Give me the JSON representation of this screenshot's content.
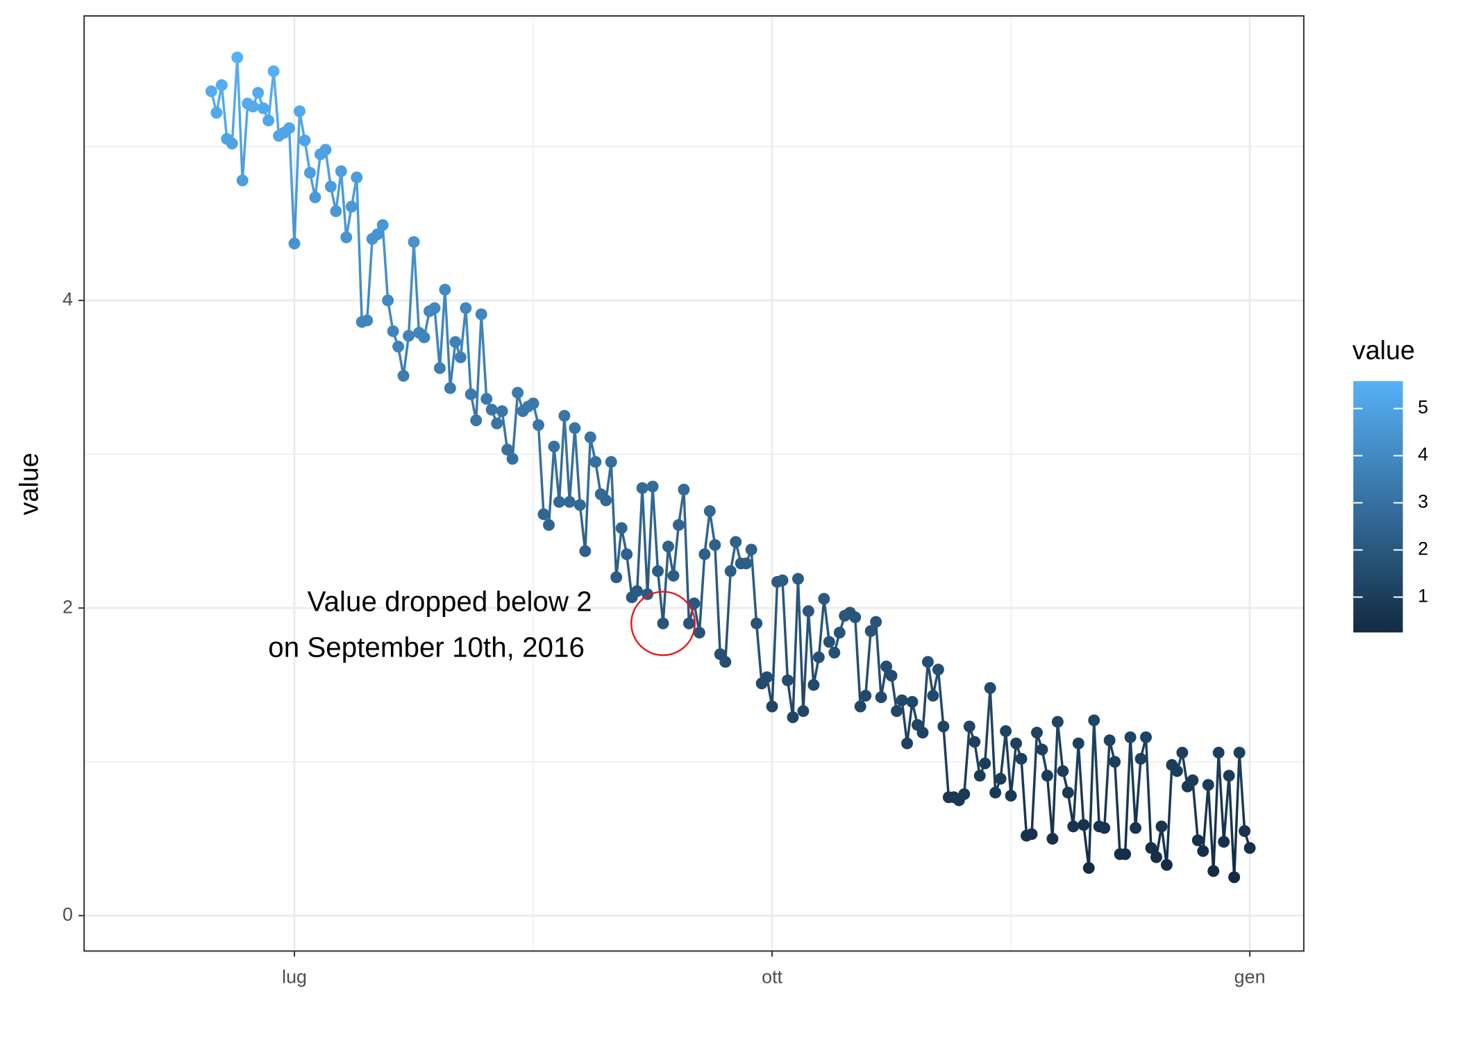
{
  "chart_data": {
    "type": "line",
    "y_label": "value",
    "x": [
      167,
      168,
      169,
      170,
      171,
      172,
      173,
      174,
      175,
      176,
      177,
      178,
      179,
      180,
      181,
      182,
      183,
      184,
      185,
      186,
      187,
      188,
      189,
      190,
      191,
      192,
      193,
      194,
      195,
      196,
      197,
      198,
      199,
      200,
      201,
      202,
      203,
      204,
      205,
      206,
      207,
      208,
      209,
      210,
      211,
      212,
      213,
      214,
      215,
      216,
      217,
      218,
      219,
      220,
      221,
      222,
      223,
      224,
      225,
      226,
      227,
      228,
      229,
      230,
      231,
      232,
      233,
      234,
      235,
      236,
      237,
      238,
      239,
      240,
      241,
      242,
      243,
      244,
      245,
      246,
      247,
      248,
      249,
      250,
      251,
      252,
      253,
      254,
      255,
      256,
      257,
      258,
      259,
      260,
      261,
      262,
      263,
      264,
      265,
      266,
      267,
      268,
      269,
      270,
      271,
      272,
      273,
      274,
      275,
      276,
      277,
      278,
      279,
      280,
      281,
      282,
      283,
      284,
      285,
      286,
      287,
      288,
      289,
      290,
      291,
      292,
      293,
      294,
      295,
      296,
      297,
      298,
      299,
      300,
      301,
      302,
      303,
      304,
      305,
      306,
      307,
      308,
      309,
      310,
      311,
      312,
      313,
      314,
      315,
      316,
      317,
      318,
      319,
      320,
      321,
      322,
      323,
      324,
      325,
      326,
      327,
      328,
      329,
      330,
      331,
      332,
      333,
      334,
      335,
      336,
      337,
      338,
      339,
      340,
      341,
      342,
      343,
      344,
      345,
      346,
      347,
      348,
      349,
      350,
      351,
      352,
      353,
      354,
      355,
      356,
      357,
      358,
      359,
      360,
      361,
      362,
      363,
      364,
      365,
      366,
      367
    ],
    "values": [
      5.36,
      5.22,
      5.4,
      5.05,
      5.02,
      5.58,
      4.78,
      5.28,
      5.26,
      5.35,
      5.25,
      5.17,
      5.49,
      5.07,
      5.09,
      5.12,
      4.37,
      5.23,
      5.04,
      4.83,
      4.67,
      4.95,
      4.98,
      4.74,
      4.58,
      4.84,
      4.41,
      4.61,
      4.8,
      3.86,
      3.87,
      4.4,
      4.43,
      4.49,
      4.0,
      3.8,
      3.7,
      3.51,
      3.77,
      4.38,
      3.79,
      3.76,
      3.93,
      3.95,
      3.56,
      4.07,
      3.43,
      3.73,
      3.63,
      3.95,
      3.39,
      3.22,
      3.91,
      3.36,
      3.29,
      3.2,
      3.28,
      3.03,
      2.97,
      3.4,
      3.28,
      3.31,
      3.33,
      3.19,
      2.61,
      2.54,
      3.05,
      2.69,
      3.25,
      2.69,
      3.17,
      2.67,
      2.37,
      3.11,
      2.95,
      2.74,
      2.7,
      2.95,
      2.2,
      2.52,
      2.35,
      2.07,
      2.11,
      2.78,
      2.09,
      2.79,
      2.24,
      1.9,
      2.4,
      2.21,
      2.54,
      2.77,
      1.9,
      2.03,
      1.84,
      2.35,
      2.63,
      2.41,
      1.7,
      1.65,
      2.24,
      2.43,
      2.29,
      2.29,
      2.38,
      1.9,
      1.51,
      1.55,
      1.36,
      2.17,
      2.18,
      1.53,
      1.29,
      2.19,
      1.33,
      1.98,
      1.5,
      1.68,
      2.06,
      1.78,
      1.71,
      1.84,
      1.95,
      1.97,
      1.94,
      1.36,
      1.43,
      1.85,
      1.91,
      1.42,
      1.62,
      1.56,
      1.33,
      1.4,
      1.12,
      1.39,
      1.24,
      1.19,
      1.65,
      1.43,
      1.6,
      1.23,
      0.77,
      0.77,
      0.75,
      0.79,
      1.23,
      1.13,
      0.91,
      0.99,
      1.48,
      0.8,
      0.89,
      1.2,
      0.78,
      1.12,
      1.02,
      0.52,
      0.53,
      1.19,
      1.08,
      0.91,
      0.5,
      1.26,
      0.94,
      0.8,
      0.58,
      1.12,
      0.59,
      0.31,
      1.27,
      0.58,
      0.57,
      1.14,
      1.0,
      0.4,
      0.4,
      1.16,
      0.57,
      1.02,
      1.16,
      0.44,
      0.38,
      0.58,
      0.33,
      0.98,
      0.94,
      1.06,
      0.84,
      0.88,
      0.49,
      0.42,
      0.85,
      0.29,
      1.06,
      0.48,
      0.91,
      0.25,
      1.06,
      0.55,
      0.44
    ],
    "xlim": [
      142.5,
      377.4
    ],
    "xticks": [
      {
        "value": 183,
        "label": "lug"
      },
      {
        "value": 275,
        "label": "ott"
      },
      {
        "value": 367,
        "label": "gen"
      }
    ],
    "ylim": [
      -0.23,
      5.85
    ],
    "yticks": [
      0,
      2,
      4
    ],
    "grid": true,
    "color_low": "#132B43",
    "color_high": "#56B1F7",
    "annotation_color": "#e41a1c",
    "legend": {
      "title": "value",
      "ticks": [
        1,
        2,
        3,
        4,
        5
      ]
    },
    "annotation": {
      "lines": [
        "Value dropped below 2",
        "on September 10th, 2016"
      ],
      "x": 254
    }
  }
}
